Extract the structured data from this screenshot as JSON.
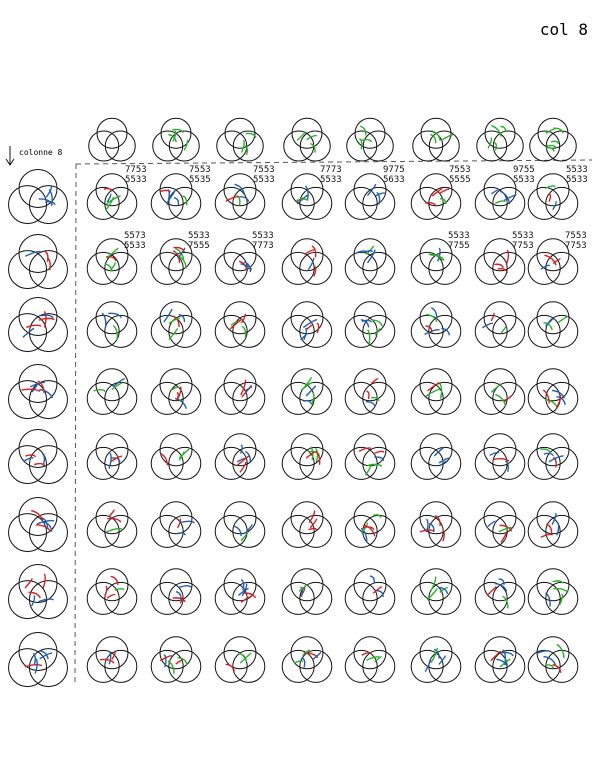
{
  "header": {
    "title": "col 8"
  },
  "side_label": "colonne 8",
  "label_rows": [
    [
      [
        "7753",
        "5533"
      ],
      [
        "7553",
        "5535"
      ],
      [
        "7553",
        "5533"
      ],
      [
        "7773",
        "5533"
      ],
      [
        "9775",
        "5633"
      ],
      [
        "7553",
        "5555"
      ],
      [
        "9755",
        "5533"
      ],
      [
        "5533",
        "5533"
      ]
    ],
    [
      [
        "5573",
        "5533"
      ],
      [
        "5533",
        "7555"
      ],
      [
        "5533",
        "7773"
      ],
      null,
      null,
      [
        "5533",
        "7755"
      ],
      [
        "5533",
        "7753"
      ],
      [
        "7553",
        "7753"
      ]
    ]
  ]
}
